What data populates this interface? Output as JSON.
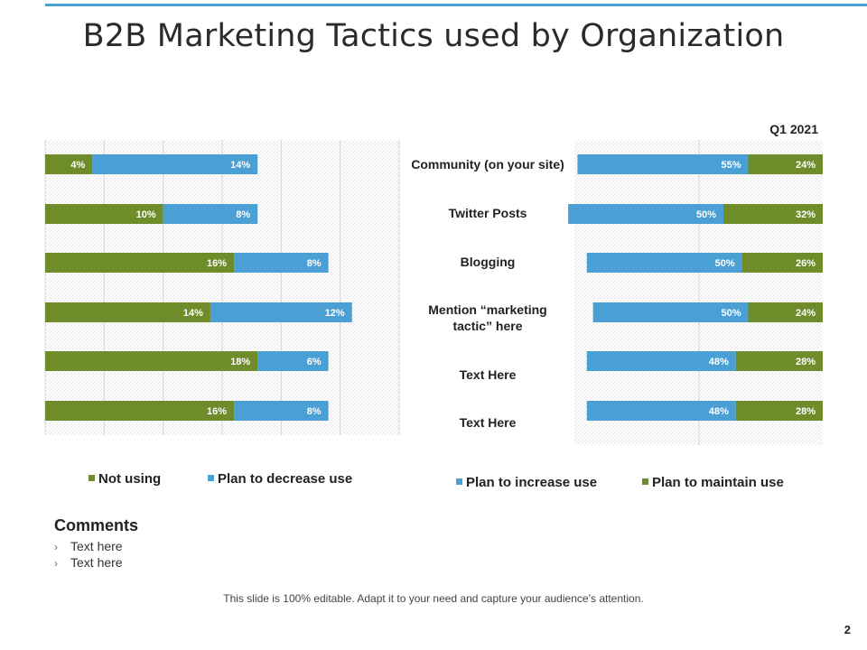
{
  "slide": {
    "title": "B2B Marketing Tactics used by Organization",
    "footer": "This slide is 100% editable. Adapt it to your need and capture your audience’s attention.",
    "page_number": "2",
    "accent": "#4a9fd5"
  },
  "comments": {
    "heading": "Comments",
    "items": [
      "Text here",
      "Text here"
    ]
  },
  "colors": {
    "green": "#6f8c2a",
    "blue": "#4a9fd5"
  },
  "chart_data": [
    {
      "type": "bar",
      "orientation": "horizontal",
      "stacked": true,
      "categories": [
        "Community  (on your site)",
        "Twitter Posts",
        "Blogging",
        "Mention “marketing tactic” here",
        "Text Here",
        "Text Here"
      ],
      "series": [
        {
          "name": "Not using",
          "color": "#6f8c2a",
          "values": [
            4,
            10,
            16,
            14,
            18,
            16
          ],
          "labels": [
            "4%",
            "10%",
            "16%",
            "14%",
            "18%",
            "16%"
          ]
        },
        {
          "name": "Plan to decrease use",
          "color": "#4a9fd5",
          "values": [
            14,
            8,
            8,
            12,
            6,
            8
          ],
          "labels": [
            "14%",
            "8%",
            "8%",
            "12%",
            "6%",
            "8%"
          ]
        }
      ],
      "xlim": [
        0,
        30
      ],
      "grid": true,
      "legend": "bottom"
    },
    {
      "type": "bar",
      "orientation": "horizontal",
      "stacked": true,
      "title": "Q1 2021",
      "categories": [
        "Community  (on your site)",
        "Twitter Posts",
        "Blogging",
        "Mention “marketing tactic” here",
        "Text Here",
        "Text Here"
      ],
      "series": [
        {
          "name": "Plan to increase use",
          "color": "#4a9fd5",
          "values": [
            55,
            50,
            50,
            50,
            48,
            48
          ],
          "labels": [
            "55%",
            "50%",
            "50%",
            "50%",
            "48%",
            "48%"
          ]
        },
        {
          "name": "Plan to maintain use",
          "color": "#6f8c2a",
          "values": [
            24,
            32,
            26,
            24,
            28,
            28
          ],
          "labels": [
            "24%",
            "32%",
            "26%",
            "24%",
            "28%",
            "28%"
          ]
        }
      ],
      "xlim": [
        0,
        80
      ],
      "grid": true,
      "legend": "bottom"
    }
  ],
  "category_labels": [
    [
      "Community  (on your site)"
    ],
    [
      "Twitter Posts"
    ],
    [
      "Blogging"
    ],
    [
      "Mention “marketing",
      "tactic” here"
    ],
    [
      "Text Here"
    ],
    [
      "Text Here"
    ]
  ]
}
